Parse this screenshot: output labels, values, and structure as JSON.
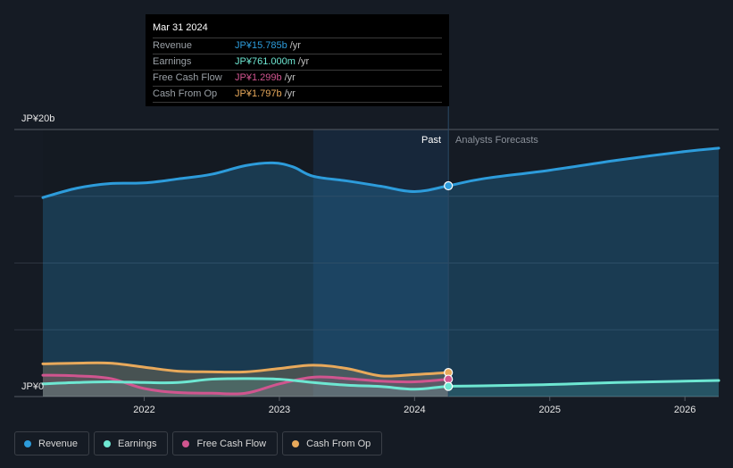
{
  "chart_data": {
    "type": "area",
    "title": "",
    "xlabel": "",
    "ylabel": "",
    "currency": "JP¥",
    "y_axis": {
      "min": 0,
      "max": 20,
      "unit": "b",
      "labels": [
        "JP¥20b",
        "JP¥0"
      ],
      "gridlines": [
        0,
        5,
        10,
        15,
        20
      ]
    },
    "x_axis": {
      "ticks": [
        2022,
        2023,
        2024,
        2025,
        2026
      ],
      "range": [
        2021.25,
        2026.25
      ]
    },
    "past_divider_x": 2024.25,
    "highlight_start_x": 2023.25,
    "region_labels": {
      "past": "Past",
      "forecast": "Analysts Forecasts"
    },
    "series": [
      {
        "name": "Revenue",
        "color": "#2d9cdb",
        "points": [
          [
            2021.25,
            14.9
          ],
          [
            2021.5,
            15.6
          ],
          [
            2021.75,
            15.95
          ],
          [
            2022.0,
            16.0
          ],
          [
            2022.25,
            16.3
          ],
          [
            2022.5,
            16.65
          ],
          [
            2022.75,
            17.3
          ],
          [
            2022.95,
            17.5
          ],
          [
            2023.1,
            17.2
          ],
          [
            2023.25,
            16.5
          ],
          [
            2023.5,
            16.15
          ],
          [
            2023.75,
            15.75
          ],
          [
            2024.0,
            15.35
          ],
          [
            2024.25,
            15.785
          ],
          [
            2024.5,
            16.3
          ],
          [
            2025.0,
            16.95
          ],
          [
            2025.5,
            17.7
          ],
          [
            2026.0,
            18.35
          ],
          [
            2026.25,
            18.6
          ]
        ]
      },
      {
        "name": "Earnings",
        "color": "#6ee7d2",
        "points": [
          [
            2021.25,
            0.95
          ],
          [
            2021.5,
            1.05
          ],
          [
            2021.75,
            1.1
          ],
          [
            2022.0,
            1.05
          ],
          [
            2022.25,
            1.05
          ],
          [
            2022.5,
            1.3
          ],
          [
            2022.75,
            1.35
          ],
          [
            2023.0,
            1.3
          ],
          [
            2023.25,
            1.05
          ],
          [
            2023.5,
            0.85
          ],
          [
            2023.75,
            0.75
          ],
          [
            2024.0,
            0.55
          ],
          [
            2024.25,
            0.761
          ],
          [
            2024.5,
            0.8
          ],
          [
            2025.0,
            0.9
          ],
          [
            2025.5,
            1.05
          ],
          [
            2026.0,
            1.15
          ],
          [
            2026.25,
            1.2
          ]
        ]
      },
      {
        "name": "Free Cash Flow",
        "color": "#d0558f",
        "points": [
          [
            2021.25,
            1.6
          ],
          [
            2021.5,
            1.55
          ],
          [
            2021.75,
            1.35
          ],
          [
            2022.0,
            0.6
          ],
          [
            2022.25,
            0.3
          ],
          [
            2022.5,
            0.25
          ],
          [
            2022.75,
            0.25
          ],
          [
            2023.0,
            0.95
          ],
          [
            2023.25,
            1.45
          ],
          [
            2023.5,
            1.35
          ],
          [
            2023.75,
            1.15
          ],
          [
            2024.0,
            1.1
          ],
          [
            2024.25,
            1.299
          ]
        ]
      },
      {
        "name": "Cash From Op",
        "color": "#e8a95b",
        "points": [
          [
            2021.25,
            2.45
          ],
          [
            2021.5,
            2.5
          ],
          [
            2021.75,
            2.5
          ],
          [
            2022.0,
            2.2
          ],
          [
            2022.25,
            1.9
          ],
          [
            2022.5,
            1.85
          ],
          [
            2022.75,
            1.85
          ],
          [
            2023.0,
            2.1
          ],
          [
            2023.25,
            2.35
          ],
          [
            2023.5,
            2.1
          ],
          [
            2023.75,
            1.55
          ],
          [
            2024.0,
            1.65
          ],
          [
            2024.25,
            1.797
          ]
        ]
      }
    ]
  },
  "tooltip": {
    "date": "Mar 31 2024",
    "rows": [
      {
        "name": "Revenue",
        "value": "JP¥15.785b",
        "unit": "/yr",
        "color": "#2d9cdb"
      },
      {
        "name": "Earnings",
        "value": "JP¥761.000m",
        "unit": "/yr",
        "color": "#6ee7d2"
      },
      {
        "name": "Free Cash Flow",
        "value": "JP¥1.299b",
        "unit": "/yr",
        "color": "#d0558f"
      },
      {
        "name": "Cash From Op",
        "value": "JP¥1.797b",
        "unit": "/yr",
        "color": "#e8a95b"
      }
    ]
  },
  "legend": [
    {
      "label": "Revenue",
      "color": "#2d9cdb"
    },
    {
      "label": "Earnings",
      "color": "#6ee7d2"
    },
    {
      "label": "Free Cash Flow",
      "color": "#d0558f"
    },
    {
      "label": "Cash From Op",
      "color": "#e8a95b"
    }
  ]
}
